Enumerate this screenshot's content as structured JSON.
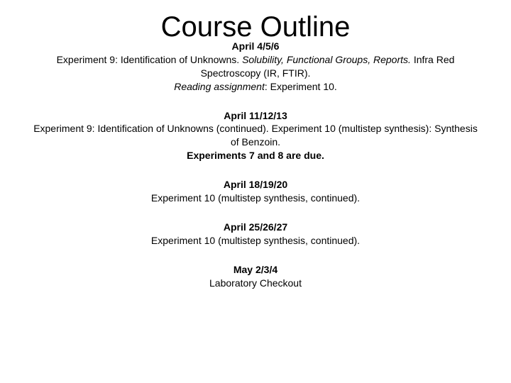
{
  "title": "Course Outline",
  "blocks": [
    {
      "date": "April 4/5/6",
      "lines": [
        {
          "segments": [
            {
              "text": "Experiment 9: Identification of Unknowns. "
            },
            {
              "text": "Solubility, Functional Groups, Reports. ",
              "italic": true
            },
            {
              "text": "Infra Red Spectroscopy (IR, FTIR)."
            }
          ]
        },
        {
          "segments": [
            {
              "text": "Reading assignment",
              "italic": true
            },
            {
              "text": ": Experiment 10."
            }
          ]
        }
      ]
    },
    {
      "date": "April 11/12/13",
      "lines": [
        {
          "segments": [
            {
              "text": "Experiment 9: Identification of Unknowns (continued). Experiment 10 (multistep synthesis): Synthesis of Benzoin."
            }
          ]
        },
        {
          "segments": [
            {
              "text": "Experiments 7 and 8 are due.",
              "bold": true
            }
          ]
        }
      ]
    },
    {
      "date": "April 18/19/20",
      "lines": [
        {
          "segments": [
            {
              "text": "Experiment 10 (multistep synthesis, continued)."
            }
          ]
        }
      ]
    },
    {
      "date": "April 25/26/27",
      "lines": [
        {
          "segments": [
            {
              "text": "Experiment 10 (multistep synthesis, continued)."
            }
          ]
        }
      ]
    },
    {
      "date": "May 2/3/4",
      "lines": [
        {
          "segments": [
            {
              "text": "Laboratory Checkout"
            }
          ]
        }
      ]
    }
  ],
  "style": {
    "background": "#ffffff",
    "text_color": "#000000",
    "title_fontsize": 40,
    "body_fontsize": 14,
    "font_family": "Arial"
  }
}
